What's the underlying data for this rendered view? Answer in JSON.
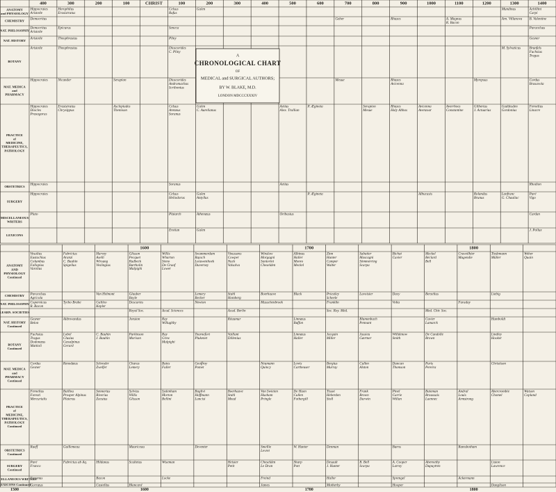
{
  "title": {
    "lines": [
      "A",
      "CHRONOLOGICAL CHART",
      "OF",
      "MEDICAL and SURGICAL AUTHORS;",
      "BY W. BLAKE, M.D.",
      "LONDON MDCCCXXXIV"
    ]
  },
  "upper": {
    "scale": [
      "400",
      "300",
      "200",
      "100",
      "CHRIST",
      "100",
      "200",
      "300",
      "400",
      "500",
      "600",
      "700",
      "800",
      "900",
      "1000",
      "1100",
      "1200",
      "1300",
      "1400"
    ],
    "rows": [
      {
        "label": [
          "ANATOMY",
          "and PHYSIOLOGY"
        ],
        "cells": [
          [
            "Hippocrates",
            "Aristotle"
          ],
          [
            "Herophilus",
            "Erasistratus"
          ],
          null,
          null,
          null,
          [
            "Celsus",
            "Rufus"
          ],
          [
            "Galen"
          ],
          null,
          null,
          null,
          null,
          null,
          null,
          null,
          null,
          null,
          null,
          [
            "Mundinus"
          ],
          [
            "Achillini",
            "Carpi"
          ]
        ]
      },
      {
        "label": [
          "CHEMISTRY"
        ],
        "cells": [
          [
            "Democritus"
          ],
          null,
          null,
          null,
          null,
          null,
          null,
          null,
          null,
          null,
          null,
          [
            "Geber"
          ],
          null,
          [
            "Rhazes"
          ],
          null,
          [
            "A. Magnus",
            "R. Bacon"
          ],
          null,
          [
            "Arn. Villanova"
          ],
          [
            "B. Valentine"
          ]
        ]
      },
      {
        "label": [
          "NAT. PHILOSOPHY"
        ],
        "cells": [
          [
            "Democritus",
            "Aristotle"
          ],
          [
            "Epicurus"
          ],
          null,
          null,
          null,
          [
            "Seneca"
          ],
          null,
          null,
          null,
          null,
          null,
          null,
          null,
          null,
          null,
          null,
          null,
          null,
          [
            "Paracelsus"
          ]
        ]
      },
      {
        "label": [
          "NAT. HISTORY"
        ],
        "cells": [
          [
            "Aristotle"
          ],
          [
            "Theophrastus"
          ],
          null,
          null,
          null,
          [
            "Pliny"
          ],
          null,
          null,
          null,
          null,
          null,
          null,
          null,
          null,
          null,
          null,
          null,
          null,
          [
            "Gesner"
          ]
        ]
      },
      {
        "label": [
          "BOTANY"
        ],
        "cells": [
          [
            "Aristotle"
          ],
          [
            "Theophrastus"
          ],
          null,
          null,
          null,
          [
            "Dioscorides",
            "C. Pliny"
          ],
          null,
          null,
          null,
          null,
          null,
          null,
          null,
          null,
          null,
          null,
          null,
          [
            "M. Sylvaticus"
          ],
          [
            "Brunfels",
            "Fuchsius",
            "Tragus"
          ]
        ]
      },
      {
        "label": [
          "MAT. MEDICA",
          "and",
          "PHARMACY"
        ],
        "cells": [
          [
            "Hippocrates"
          ],
          [
            "Nicander"
          ],
          null,
          [
            "Serapion"
          ],
          null,
          [
            "Dioscorides",
            "Andromachus",
            "Scribonius"
          ],
          null,
          null,
          null,
          null,
          null,
          [
            "Mesue"
          ],
          null,
          [
            "Rhazes",
            "Avicenna"
          ],
          null,
          null,
          [
            "Myrepsus"
          ],
          null,
          [
            "Cordus",
            "Brasavola"
          ]
        ]
      },
      {
        "label": [
          "PRACTICE",
          "of",
          "MEDICINE,",
          "THERAPEUTICS,",
          "PATHOLOGY"
        ],
        "cells": [
          [
            "Hippocrates",
            "Diocles",
            "Praxagoras"
          ],
          [
            "Erasistratus",
            "Chrysippus"
          ],
          null,
          [
            "Asclepiades",
            "Themison"
          ],
          null,
          [
            "Celsus",
            "Aretæus",
            "Soranus"
          ],
          [
            "Galen",
            "C. Aurelianus"
          ],
          null,
          null,
          [
            "Aetius",
            "Alex. Trallian"
          ],
          [
            "P. Ægineta"
          ],
          null,
          [
            "Serapion",
            "Mesue"
          ],
          [
            "Rhazes",
            "Haly Abbas"
          ],
          [
            "Avicenna",
            "Avenzoar"
          ],
          [
            "Averrhoes",
            "Constantine"
          ],
          [
            "Gilbertus",
            "J. Actuarius"
          ],
          [
            "Gaddesden",
            "Gordonius"
          ],
          [
            "Fernelius",
            "Linacre"
          ]
        ]
      },
      {
        "label": [
          "OBSTETRICS"
        ],
        "cells": [
          [
            "Hippocrates"
          ],
          null,
          null,
          null,
          null,
          [
            "Soranus"
          ],
          null,
          null,
          null,
          [
            "Aetius"
          ],
          null,
          null,
          null,
          null,
          null,
          null,
          null,
          null,
          [
            "Rhodion"
          ]
        ]
      },
      {
        "label": [
          "SURGERY"
        ],
        "cells": [
          [
            "Hippocrates"
          ],
          null,
          null,
          null,
          null,
          [
            "Celsus",
            "Heliodorus"
          ],
          [
            "Galen",
            "Antyllus"
          ],
          null,
          null,
          null,
          [
            "P. Ægineta"
          ],
          null,
          null,
          null,
          [
            "Albucasis"
          ],
          null,
          [
            "Rolandus",
            "Brunus"
          ],
          [
            "Lanfranc",
            "G. Chauliac"
          ],
          [
            "Paré",
            "Vigo"
          ]
        ]
      },
      {
        "label": [
          "MISCELLANEOUS",
          "WRITERS"
        ],
        "cells": [
          [
            "Plato"
          ],
          null,
          null,
          null,
          null,
          [
            "Plutarch"
          ],
          [
            "Athenæus"
          ],
          null,
          null,
          [
            "Oribasius"
          ],
          null,
          null,
          null,
          null,
          null,
          null,
          null,
          null,
          [
            "Cardan"
          ]
        ]
      },
      {
        "label": [
          "LEXICONS"
        ],
        "cells": [
          null,
          null,
          null,
          null,
          null,
          [
            "Erotian"
          ],
          [
            "Galen"
          ],
          null,
          null,
          null,
          null,
          null,
          null,
          null,
          null,
          null,
          null,
          null,
          [
            "J. Pollux"
          ]
        ]
      }
    ]
  },
  "lower": {
    "scale": [
      null,
      null,
      null,
      "1600",
      null,
      null,
      null,
      null,
      "1700",
      null,
      null,
      null,
      null,
      "1800",
      null,
      null
    ],
    "footer_start": "1500",
    "rows": [
      {
        "label": [
          "ANATOMY",
          "AND",
          "PHYSIOLOGY",
          "Continued"
        ],
        "cells": [
          [
            "Vesalius",
            "Eustachius",
            "Columbus",
            "Fallopius",
            "Varolius"
          ],
          [
            "Fabricius",
            "Aranzi",
            "C. Bauhin",
            "Spigelius"
          ],
          [
            "Harvey",
            "Aselli",
            "Wirsung",
            "Veslingius"
          ],
          [
            "Glisson",
            "Pecquet",
            "Rudbeck",
            "Bartholin",
            "Malpighi"
          ],
          [
            "Willis",
            "Wharton",
            "Steno",
            "De Graaf",
            "Lower"
          ],
          [
            "Swammerdam",
            "Ruysch",
            "Leeuwenhoek",
            "Duverney"
          ],
          [
            "Vieussens",
            "Cowper",
            "Nuck",
            "Valsalva"
          ],
          [
            "Winslow",
            "Morgagni",
            "Santorini",
            "Cheselden"
          ],
          [
            "Albinus",
            "Haller",
            "Monro",
            "Meckel"
          ],
          [
            "Zinn",
            "Hunter",
            "Camper",
            "Walter"
          ],
          [
            "Sabatier",
            "Mascagni",
            "Sömmerring",
            "Scarpa"
          ],
          [
            "Bichat",
            "Cuvier"
          ],
          [
            "Meckel",
            "Béclard",
            "Bell"
          ],
          [
            "Cruveilhier",
            "Magendie"
          ],
          [
            "Tiedemann",
            "Müller"
          ],
          [
            "Weber",
            "Quain"
          ]
        ]
      },
      {
        "label": [
          "CHEMISTRY"
        ],
        "cells": [
          [
            "Paracelsus",
            "Agricola"
          ],
          null,
          [
            "Van Helmont"
          ],
          [
            "Glauber",
            "Boyle"
          ],
          null,
          [
            "Lemery",
            "Becher"
          ],
          [
            "Stahl",
            "Homberg"
          ],
          [
            "Boerhaave"
          ],
          [
            "Black"
          ],
          [
            "Priestley",
            "Scheele"
          ],
          [
            "Lavoisier"
          ],
          [
            "Davy"
          ],
          [
            "Berzelius"
          ],
          null,
          [
            "Liebig"
          ],
          null
        ]
      },
      {
        "label": [
          "NAT. PHILOSOPHY"
        ],
        "cells": [
          [
            "Copernicus",
            "R. Bacon"
          ],
          [
            "Tycho Brahe"
          ],
          [
            "Galileo",
            "Kepler"
          ],
          [
            "Descartes"
          ],
          null,
          [
            "Newton"
          ],
          null,
          [
            "Musschenbroek"
          ],
          null,
          [
            "Franklin"
          ],
          null,
          [
            "Volta"
          ],
          null,
          [
            "Faraday"
          ],
          null,
          null
        ]
      },
      {
        "label": [
          "LEARN. SOCIETIES"
        ],
        "cells": [
          null,
          null,
          null,
          [
            "Royal Soc."
          ],
          [
            "Acad. Sciences"
          ],
          null,
          [
            "Acad. Berlin"
          ],
          null,
          null,
          [
            "Soc. Roy. Méd."
          ],
          null,
          null,
          [
            "Med. Chir. Soc."
          ],
          null,
          null,
          null
        ]
      },
      {
        "label": [
          "NAT. HISTORY",
          "Continued"
        ],
        "cells": [
          [
            "Gesner",
            "Belon"
          ],
          [
            "Aldrovandus"
          ],
          null,
          [
            "Jonston"
          ],
          [
            "Ray",
            "Willughby"
          ],
          null,
          [
            "Réaumur"
          ],
          null,
          [
            "Linnæus",
            "Buffon"
          ],
          null,
          [
            "Blumenbach",
            "Pennant"
          ],
          null,
          [
            "Cuvier",
            "Lamarck"
          ],
          null,
          [
            "Humboldt"
          ],
          null
        ]
      },
      {
        "label": [
          "BOTANY",
          "Continued"
        ],
        "cells": [
          [
            "Fuchsius",
            "Tragus",
            "Dodonæus",
            "Mattioli"
          ],
          [
            "Lobel",
            "Clusius",
            "Cæsalpinus",
            "Gerard"
          ],
          [
            "C. Bauhin",
            "J. Bauhin"
          ],
          [
            "Parkinson",
            "Morison"
          ],
          [
            "Ray",
            "Grew",
            "Malpighi"
          ],
          [
            "Tournefort",
            "Plukenet"
          ],
          [
            "Vaillant",
            "Dillenius"
          ],
          null,
          [
            "Linnæus",
            "Haller"
          ],
          [
            "Jacquin",
            "Miller"
          ],
          [
            "Jussieu",
            "Gærtner"
          ],
          [
            "Willdenow",
            "Smith"
          ],
          [
            "De Candolle",
            "Brown"
          ],
          null,
          [
            "Lindley",
            "Hooker"
          ],
          null
        ]
      },
      {
        "label": [
          "MAT. MEDICA",
          "and",
          "PHARMACY",
          "Continued"
        ],
        "cells": [
          [
            "Cordus",
            "Gesner"
          ],
          [
            "Renodæus"
          ],
          [
            "Schroder",
            "Zwelfer"
          ],
          [
            "Charas",
            "Lemery"
          ],
          [
            "Bates",
            "Fuller"
          ],
          [
            "Geoffroy",
            "Pomet"
          ],
          null,
          [
            "Neumann",
            "Quincy"
          ],
          [
            "Lewis",
            "Cartheuser"
          ],
          [
            "Bergius",
            "Murray"
          ],
          [
            "Cullen",
            "Alston"
          ],
          [
            "Duncan",
            "Thomson"
          ],
          [
            "Paris",
            "Pereira"
          ],
          null,
          [
            "Christison"
          ],
          null
        ]
      },
      {
        "label": [
          "PRACTICE",
          "of",
          "MEDICINE,",
          "THERAPEUTICS,",
          "PATHOLOGY",
          "Continued"
        ],
        "cells": [
          [
            "Fernelius",
            "Foresti",
            "Mercurialis"
          ],
          [
            "Baillou",
            "Prosper Alpinus",
            "Platerus"
          ],
          [
            "Sennertus",
            "Riverius",
            "Zacutus"
          ],
          [
            "Sylvius",
            "Willis",
            "Glisson"
          ],
          [
            "Sydenham",
            "Morton",
            "Bellini"
          ],
          [
            "Baglivi",
            "Hoffmann",
            "Lancisi"
          ],
          [
            "Boerhaave",
            "Stahl",
            "Mead"
          ],
          [
            "Van Swieten",
            "Huxham",
            "Pringle"
          ],
          [
            "De Haen",
            "Cullen",
            "Fothergill"
          ],
          [
            "Tissot",
            "Heberden",
            "Stoll"
          ],
          [
            "Frank",
            "Brown",
            "Darwin"
          ],
          [
            "Pinel",
            "Currie",
            "Willan"
          ],
          [
            "Bateman",
            "Broussais",
            "Laennec"
          ],
          [
            "Andral",
            "Louis",
            "Armstrong"
          ],
          [
            "Abercrombie",
            "Chomel"
          ],
          [
            "Watson",
            "Copland"
          ]
        ]
      },
      {
        "label": [
          "OBSTETRICS",
          "Continued"
        ],
        "cells": [
          [
            "Rueff"
          ],
          [
            "Guillemeau"
          ],
          null,
          [
            "Mauriceau"
          ],
          null,
          [
            "Deventer"
          ],
          null,
          [
            "Smellie",
            "Levret"
          ],
          [
            "W. Hunter"
          ],
          [
            "Denman"
          ],
          null,
          [
            "Burns"
          ],
          null,
          [
            "Ramsbotham"
          ],
          null,
          null
        ]
      },
      {
        "label": [
          "SURGERY",
          "Continued"
        ],
        "cells": [
          [
            "Paré",
            "Franco"
          ],
          [
            "Fabricius ab Aq."
          ],
          [
            "Hildanus"
          ],
          [
            "Scultetus"
          ],
          [
            "Wiseman"
          ],
          null,
          [
            "Heister",
            "Petit"
          ],
          [
            "Cheselden",
            "Le Dran"
          ],
          [
            "Sharp",
            "Pott"
          ],
          [
            "Desault",
            "J. Hunter"
          ],
          [
            "B. Bell",
            "Scarpa"
          ],
          [
            "A. Cooper",
            "Larrey"
          ],
          [
            "Abernethy",
            "Dupuytren"
          ],
          null,
          [
            "Liston",
            "Lawrence"
          ],
          null
        ]
      },
      {
        "label": [
          "MISCELLANEOUS WRITERS"
        ],
        "cells": [
          [
            "Erasmus"
          ],
          null,
          [
            "Bacon"
          ],
          null,
          [
            "Locke"
          ],
          null,
          null,
          [
            "Freind"
          ],
          null,
          [
            "Haller"
          ],
          null,
          [
            "Sprengel"
          ],
          null,
          [
            "Ackermann"
          ],
          null,
          null
        ]
      },
      {
        "label": [
          "LEXICONS Continued"
        ],
        "cells": [
          [
            "Gorræus"
          ],
          null,
          [
            "Castellus"
          ],
          [
            "Blancard"
          ],
          null,
          null,
          null,
          [
            "James"
          ],
          null,
          [
            "Motherby"
          ],
          null,
          [
            "Hooper"
          ],
          null,
          null,
          [
            "Dunglison"
          ],
          null
        ]
      }
    ]
  }
}
